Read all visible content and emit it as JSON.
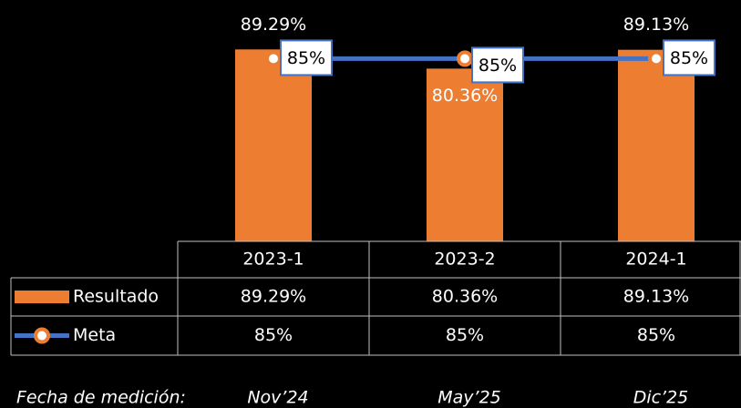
{
  "chart_data": {
    "type": "bar_line",
    "categories": [
      "2023-1",
      "2023-2",
      "2024-1"
    ],
    "series": [
      {
        "name": "Resultado",
        "type": "bar",
        "color": "#ed7d31",
        "values": [
          89.29,
          80.36,
          89.13
        ],
        "value_labels": [
          "89.29%",
          "80.36%",
          "89.13%"
        ]
      },
      {
        "name": "Meta",
        "type": "line",
        "color": "#4472c4",
        "marker_color": "#ed7d31",
        "values": [
          85,
          85,
          85
        ],
        "value_labels": [
          "85%",
          "85%",
          "85%"
        ]
      }
    ],
    "ylim": [
      0,
      100
    ],
    "measurement_label": "Fecha de medición:",
    "measurement_dates": [
      "Nov’24",
      "May’25",
      "Dic’25"
    ]
  }
}
